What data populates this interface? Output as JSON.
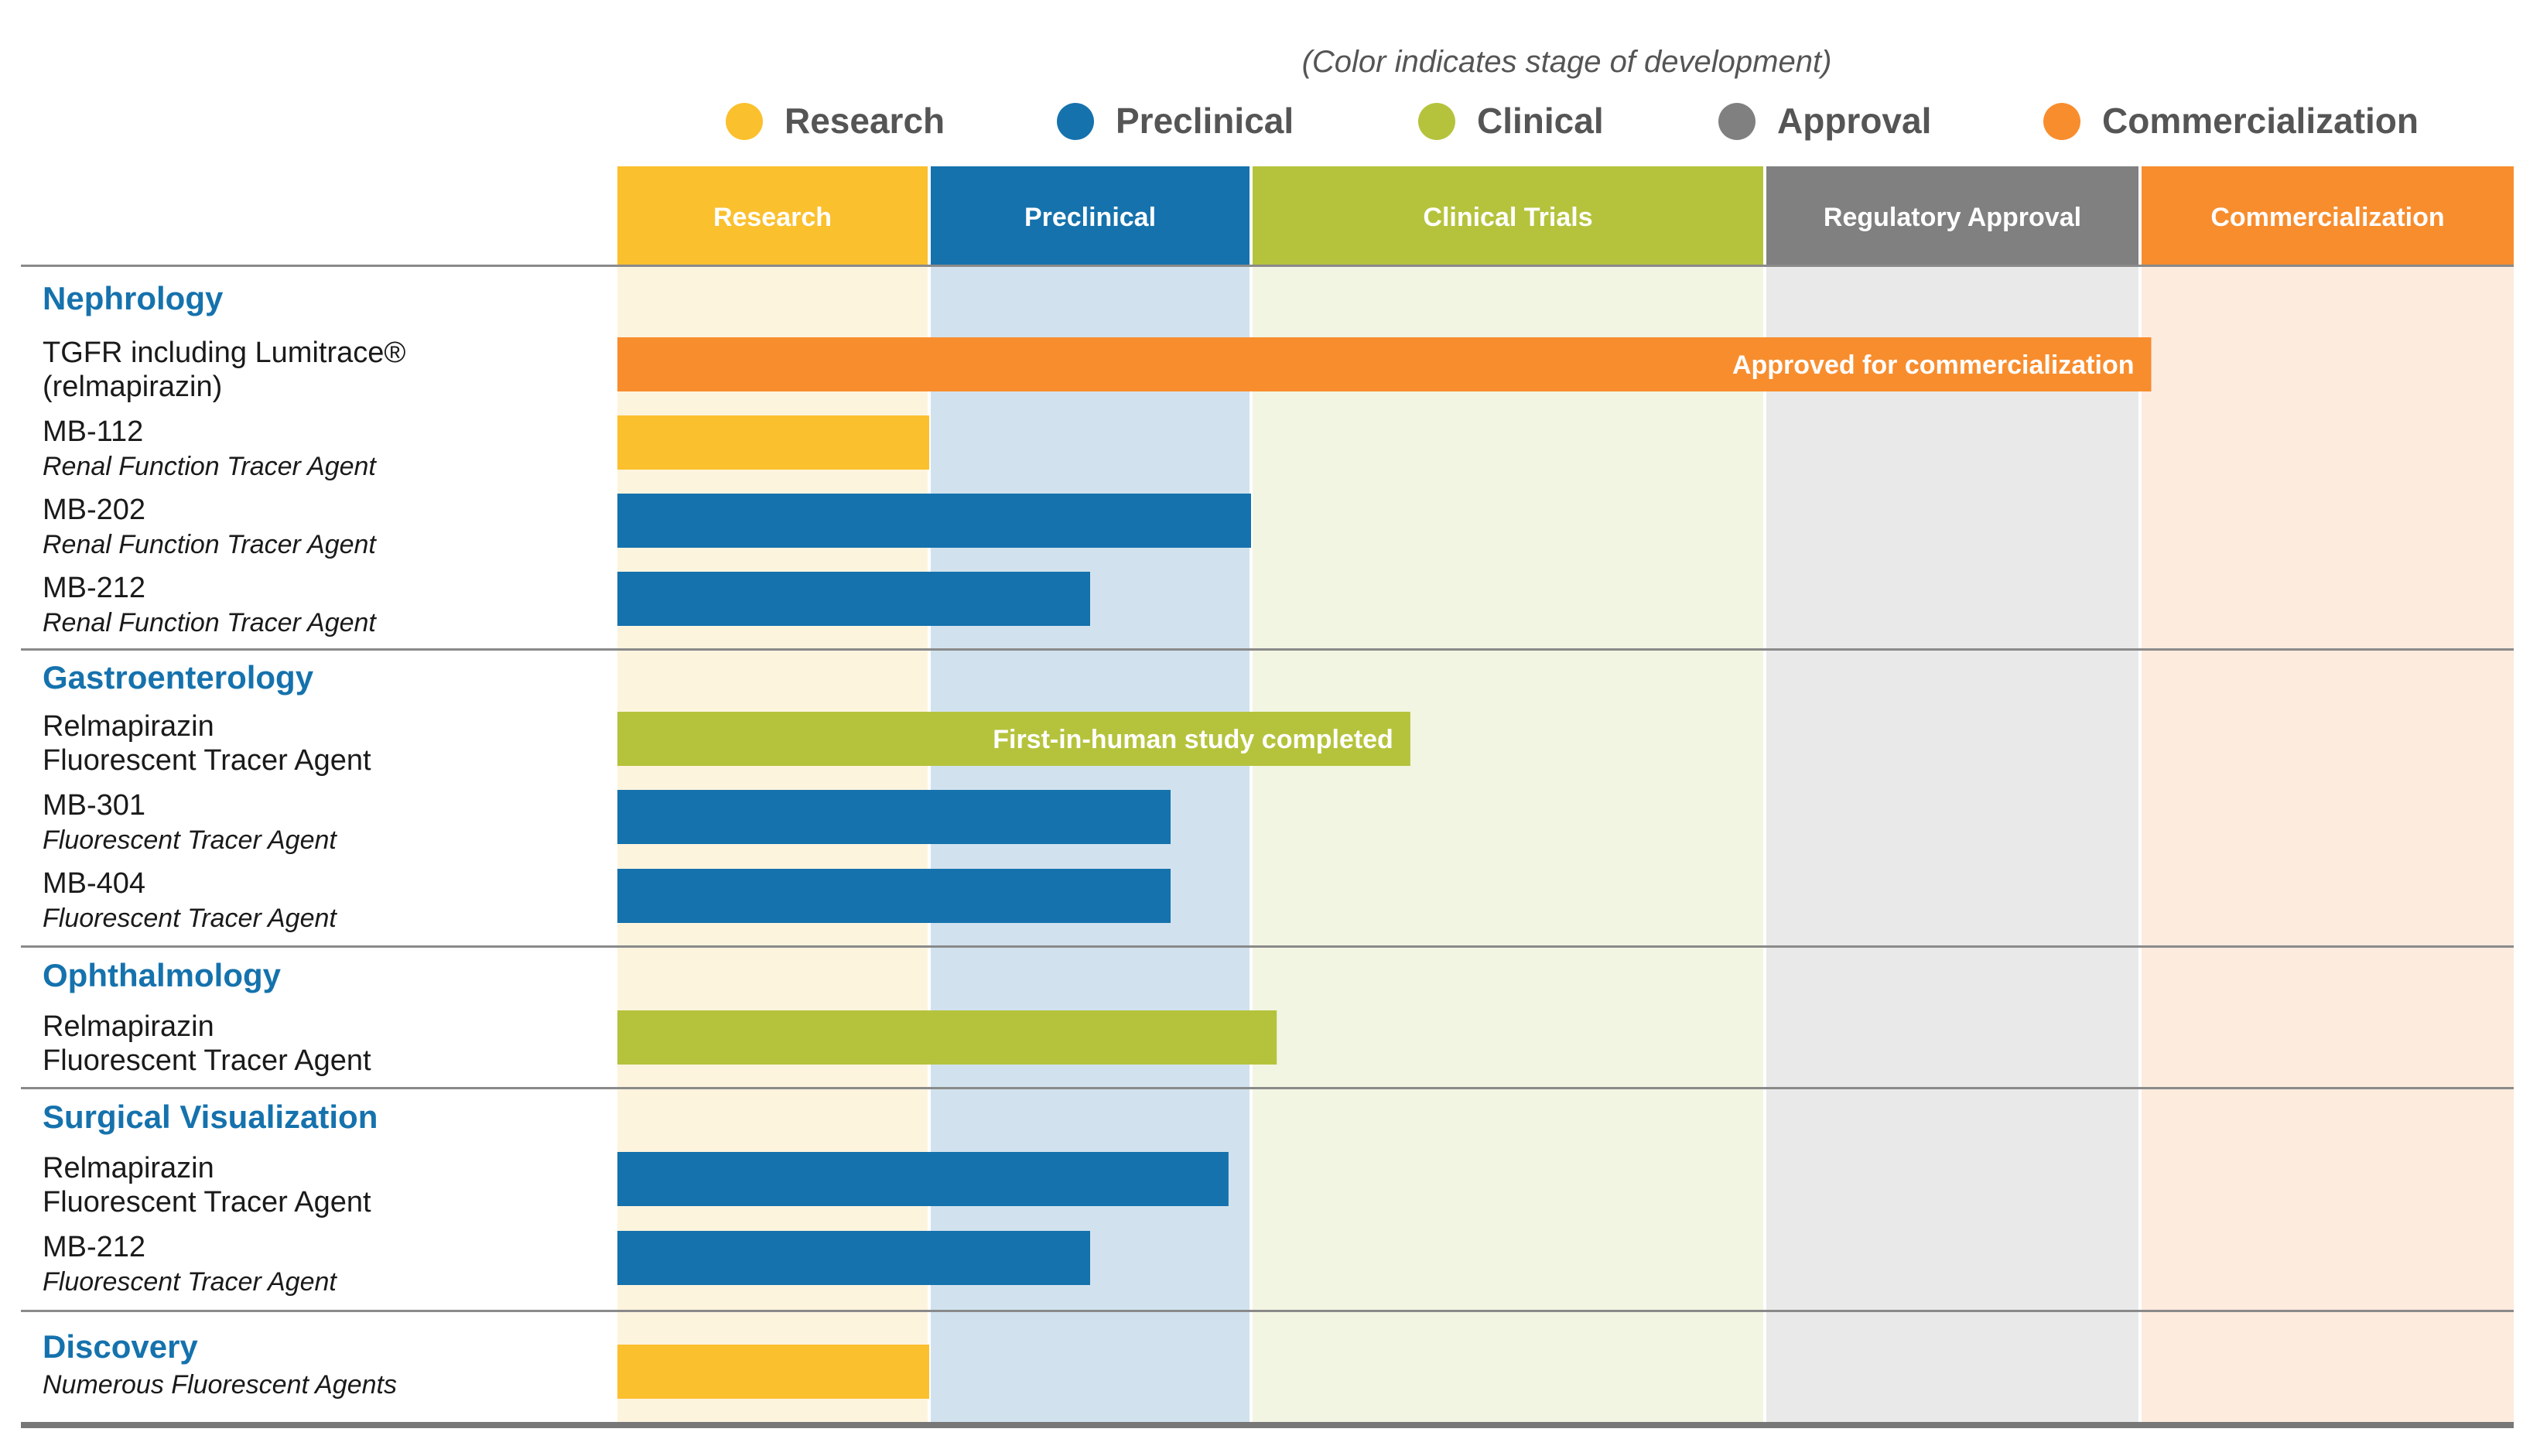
{
  "chart_data": {
    "type": "bar",
    "subtitle": "(Color indicates stage of development)",
    "legend": [
      {
        "label": "Research",
        "color": "#FBC02D"
      },
      {
        "label": "Preclinical",
        "color": "#1572AD"
      },
      {
        "label": "Clinical",
        "color": "#B5C33C"
      },
      {
        "label": "Approval",
        "color": "#808080"
      },
      {
        "label": "Commercialization",
        "color": "#F88D2E"
      }
    ],
    "stages": [
      {
        "label": "Research",
        "color": "#FBC02D",
        "band": "#FDF4DE"
      },
      {
        "label": "Preclinical",
        "color": "#1572AD",
        "band": "#D1E2EE"
      },
      {
        "label": "Clinical Trials",
        "color": "#B5C33C",
        "band": "#F2F5E2"
      },
      {
        "label": "Regulatory Approval",
        "color": "#808080",
        "band": "#E9E9E9"
      },
      {
        "label": "Commercialization",
        "color": "#F88D2E",
        "band": "#FDEBDE"
      }
    ],
    "value_axis": "progress measured in stages from start of Research (0) to end of Commercialization (5)",
    "groups": [
      {
        "name": "Nephrology",
        "items": [
          {
            "name": "TGFR including Lumitrace®",
            "name2": "(relmapirazin)",
            "italic2": false,
            "value": 4.03,
            "stage": 5,
            "label": "Approved for commercialization"
          },
          {
            "name": "MB-112",
            "name2": "Renal Function Tracer Agent",
            "italic2": true,
            "value": 1.0,
            "stage": 1,
            "label": ""
          },
          {
            "name": "MB-202",
            "name2": "Renal Function Tracer Agent",
            "italic2": true,
            "value": 2.0,
            "stage": 2,
            "label": ""
          },
          {
            "name": "MB-212",
            "name2": "Renal Function Tracer Agent",
            "italic2": true,
            "value": 1.5,
            "stage": 2,
            "label": ""
          }
        ]
      },
      {
        "name": "Gastroenterology",
        "items": [
          {
            "name": "Relmapirazin",
            "name2": "Fluorescent Tracer Agent",
            "italic2": false,
            "value": 2.31,
            "stage": 3,
            "label": "First-in-human study completed"
          },
          {
            "name": "MB-301",
            "name2": "Fluorescent Tracer Agent",
            "italic2": true,
            "value": 1.75,
            "stage": 2,
            "label": ""
          },
          {
            "name": "MB-404",
            "name2": "Fluorescent Tracer Agent",
            "italic2": true,
            "value": 1.75,
            "stage": 2,
            "label": ""
          }
        ]
      },
      {
        "name": "Ophthalmology",
        "items": [
          {
            "name": "Relmapirazin",
            "name2": "Fluorescent Tracer Agent",
            "italic2": false,
            "value": 2.05,
            "stage": 3,
            "label": ""
          }
        ]
      },
      {
        "name": "Surgical Visualization",
        "items": [
          {
            "name": "Relmapirazin",
            "name2": "Fluorescent Tracer Agent",
            "italic2": false,
            "value": 1.93,
            "stage": 2,
            "label": ""
          },
          {
            "name": "MB-212",
            "name2": "Fluorescent Tracer Agent",
            "italic2": true,
            "value": 1.5,
            "stage": 2,
            "label": ""
          }
        ]
      },
      {
        "name": "Discovery",
        "items": [
          {
            "name": "",
            "name2": "Numerous Fluorescent Agents",
            "italic2": true,
            "value": 1.0,
            "stage": 1,
            "label": ""
          }
        ]
      }
    ],
    "colors": {
      "group_title": "#1572AD",
      "text": "#1A1A1A",
      "legend_text": "#555555",
      "rule": "#8A8A8A",
      "bottom_rule": "#777777"
    }
  }
}
